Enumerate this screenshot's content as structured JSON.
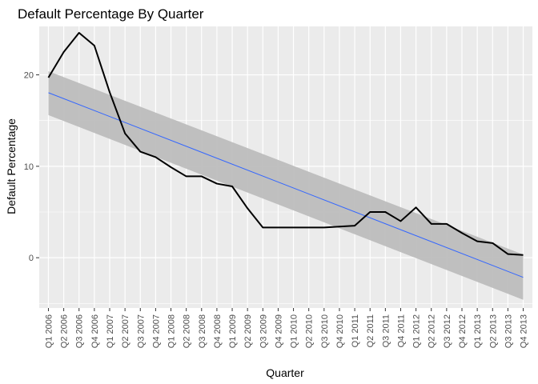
{
  "chart_data": {
    "type": "line",
    "title": "Default Percentage By Quarter",
    "xlabel": "Quarter",
    "ylabel": "Default Percentage",
    "categories": [
      "Q1 2006",
      "Q2 2006",
      "Q3 2006",
      "Q4 2006",
      "Q1 2007",
      "Q2 2007",
      "Q3 2007",
      "Q4 2007",
      "Q1 2008",
      "Q2 2008",
      "Q3 2008",
      "Q4 2008",
      "Q1 2009",
      "Q2 2009",
      "Q3 2009",
      "Q4 2009",
      "Q1 2010",
      "Q2 2010",
      "Q3 2010",
      "Q4 2010",
      "Q1 2011",
      "Q2 2011",
      "Q3 2011",
      "Q4 2011",
      "Q1 2012",
      "Q2 2012",
      "Q3 2012",
      "Q4 2012",
      "Q1 2013",
      "Q2 2013",
      "Q3 2013",
      "Q4 2013"
    ],
    "ylim": [
      -5.5,
      25.3
    ],
    "yticks": [
      0,
      10,
      20
    ],
    "grid": true,
    "series": [
      {
        "values": [
          19.7,
          22.5,
          24.6,
          23.2,
          18.1,
          13.6,
          11.6,
          11.0,
          9.9,
          8.9,
          8.9,
          8.1,
          7.8,
          5.4,
          3.3,
          3.3,
          3.3,
          3.3,
          3.3,
          3.4,
          3.5,
          5.0,
          5.0,
          4.0,
          5.5,
          3.7,
          3.7,
          2.7,
          1.8,
          1.6,
          0.4,
          0.3
        ],
        "color": "#000000"
      }
    ],
    "trend": {
      "method": "linear",
      "start": 18.05,
      "end": -2.15,
      "band_upper_start": 20.4,
      "band_lower_start": 15.6,
      "band_upper_end": 0.35,
      "band_lower_end": -4.6,
      "color": "#3366FF",
      "band_color": "#bdbdbd"
    },
    "colors": {
      "panel": "#ebebeb",
      "grid_major": "#ffffff",
      "tick_label": "#4d4d4d"
    }
  }
}
